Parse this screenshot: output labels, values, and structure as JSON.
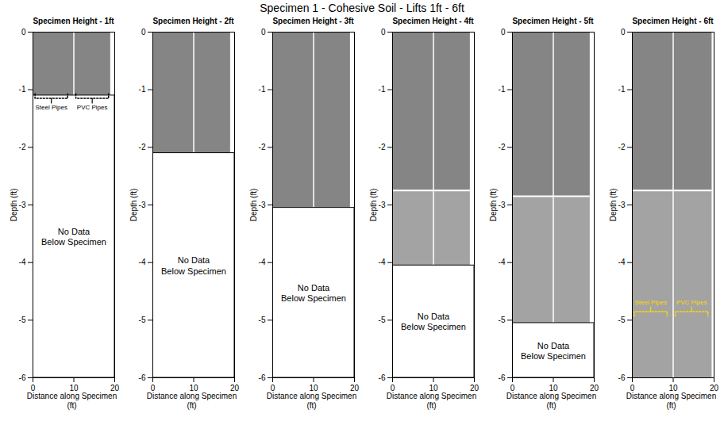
{
  "title": "Specimen 1 - Cohesive Soil - Lifts 1ft - 6ft",
  "chart_data": [
    {
      "type": "image",
      "title": "Specimen Height - 1ft",
      "xlabel": "Distance along Specimen (ft)",
      "ylabel": "Depth (ft)",
      "xlim": [
        0,
        20
      ],
      "ylim": [
        -6,
        0
      ],
      "xticks": [
        0,
        10,
        20
      ],
      "yticks": [
        0,
        -1,
        -2,
        -3,
        -4,
        -5,
        -6
      ],
      "data_x": [
        0,
        19
      ],
      "divider_x": 10,
      "layers": [
        {
          "top": 0,
          "bottom": -1.1,
          "color": "#858585"
        }
      ],
      "no_data_label": "No Data\nBelow Specimen",
      "brackets": [
        {
          "label": "Steel Pipes",
          "x": [
            0.5,
            8.5
          ],
          "y": -1.15,
          "color": "#000000"
        },
        {
          "label": "PVC Pipes",
          "x": [
            10.5,
            18.5
          ],
          "y": -1.15,
          "color": "#000000"
        }
      ]
    },
    {
      "type": "image",
      "title": "Specimen Height - 2ft",
      "xlabel": "Distance along Specimen (ft)",
      "ylabel": "Depth (ft)",
      "xlim": [
        0,
        20
      ],
      "ylim": [
        -6,
        0
      ],
      "xticks": [
        0,
        10,
        20
      ],
      "yticks": [
        0,
        -1,
        -2,
        -3,
        -4,
        -5,
        -6
      ],
      "data_x": [
        0,
        19
      ],
      "divider_x": 10,
      "layers": [
        {
          "top": 0,
          "bottom": -2.1,
          "color": "#858585"
        }
      ],
      "no_data_label": "No Data\nBelow Specimen",
      "brackets": []
    },
    {
      "type": "image",
      "title": "Specimen Height - 3ft",
      "xlabel": "Distance along Specimen (ft)",
      "ylabel": "Depth (ft)",
      "xlim": [
        0,
        20
      ],
      "ylim": [
        -6,
        0
      ],
      "xticks": [
        0,
        10,
        20
      ],
      "yticks": [
        0,
        -1,
        -2,
        -3,
        -4,
        -5,
        -6
      ],
      "data_x": [
        0,
        19
      ],
      "divider_x": 10,
      "layers": [
        {
          "top": 0,
          "bottom": -3.05,
          "color": "#858585"
        }
      ],
      "no_data_label": "No Data\nBelow Specimen",
      "brackets": []
    },
    {
      "type": "image",
      "title": "Specimen Height - 4ft",
      "xlabel": "Distance along Specimen (ft)",
      "ylabel": "Depth (ft)",
      "xlim": [
        0,
        20
      ],
      "ylim": [
        -6,
        0
      ],
      "xticks": [
        0,
        10,
        20
      ],
      "yticks": [
        0,
        -1,
        -2,
        -3,
        -4,
        -5,
        -6
      ],
      "data_x": [
        0,
        19
      ],
      "divider_x": 10,
      "layers": [
        {
          "top": 0,
          "bottom": -2.75,
          "color": "#858585"
        },
        {
          "top": -2.75,
          "bottom": -4.05,
          "color": "#a3a3a3"
        }
      ],
      "no_data_label": "No Data\nBelow Specimen",
      "brackets": []
    },
    {
      "type": "image",
      "title": "Specimen Height - 5ft",
      "xlabel": "Distance along Specimen (ft)",
      "ylabel": "Depth (ft)",
      "xlim": [
        0,
        20
      ],
      "ylim": [
        -6,
        0
      ],
      "xticks": [
        0,
        10,
        20
      ],
      "yticks": [
        0,
        -1,
        -2,
        -3,
        -4,
        -5,
        -6
      ],
      "data_x": [
        0,
        19
      ],
      "divider_x": 10,
      "layers": [
        {
          "top": 0,
          "bottom": -2.85,
          "color": "#858585"
        },
        {
          "top": -2.85,
          "bottom": -5.05,
          "color": "#a3a3a3"
        }
      ],
      "no_data_label": "No Data\nBelow Specimen",
      "brackets": []
    },
    {
      "type": "image",
      "title": "Specimen Height - 6ft",
      "xlabel": "Distance along Specimen (ft)",
      "ylabel": "Depth (ft)",
      "xlim": [
        0,
        20
      ],
      "ylim": [
        -6,
        0
      ],
      "xticks": [
        0,
        10,
        20
      ],
      "yticks": [
        0,
        -1,
        -2,
        -3,
        -4,
        -5,
        -6
      ],
      "data_x": [
        0,
        19.5
      ],
      "divider_x": 10,
      "layers": [
        {
          "top": 0,
          "bottom": -2.75,
          "color": "#858585"
        },
        {
          "top": -2.75,
          "bottom": -6,
          "color": "#a3a3a3"
        }
      ],
      "brackets": [
        {
          "label": "Steel Pipes",
          "x": [
            0.5,
            8.5
          ],
          "y": -4.85,
          "color": "#ffd700"
        },
        {
          "label": "PVC Pipes",
          "x": [
            10.5,
            18.5
          ],
          "y": -4.85,
          "color": "#ffd700"
        }
      ]
    }
  ]
}
